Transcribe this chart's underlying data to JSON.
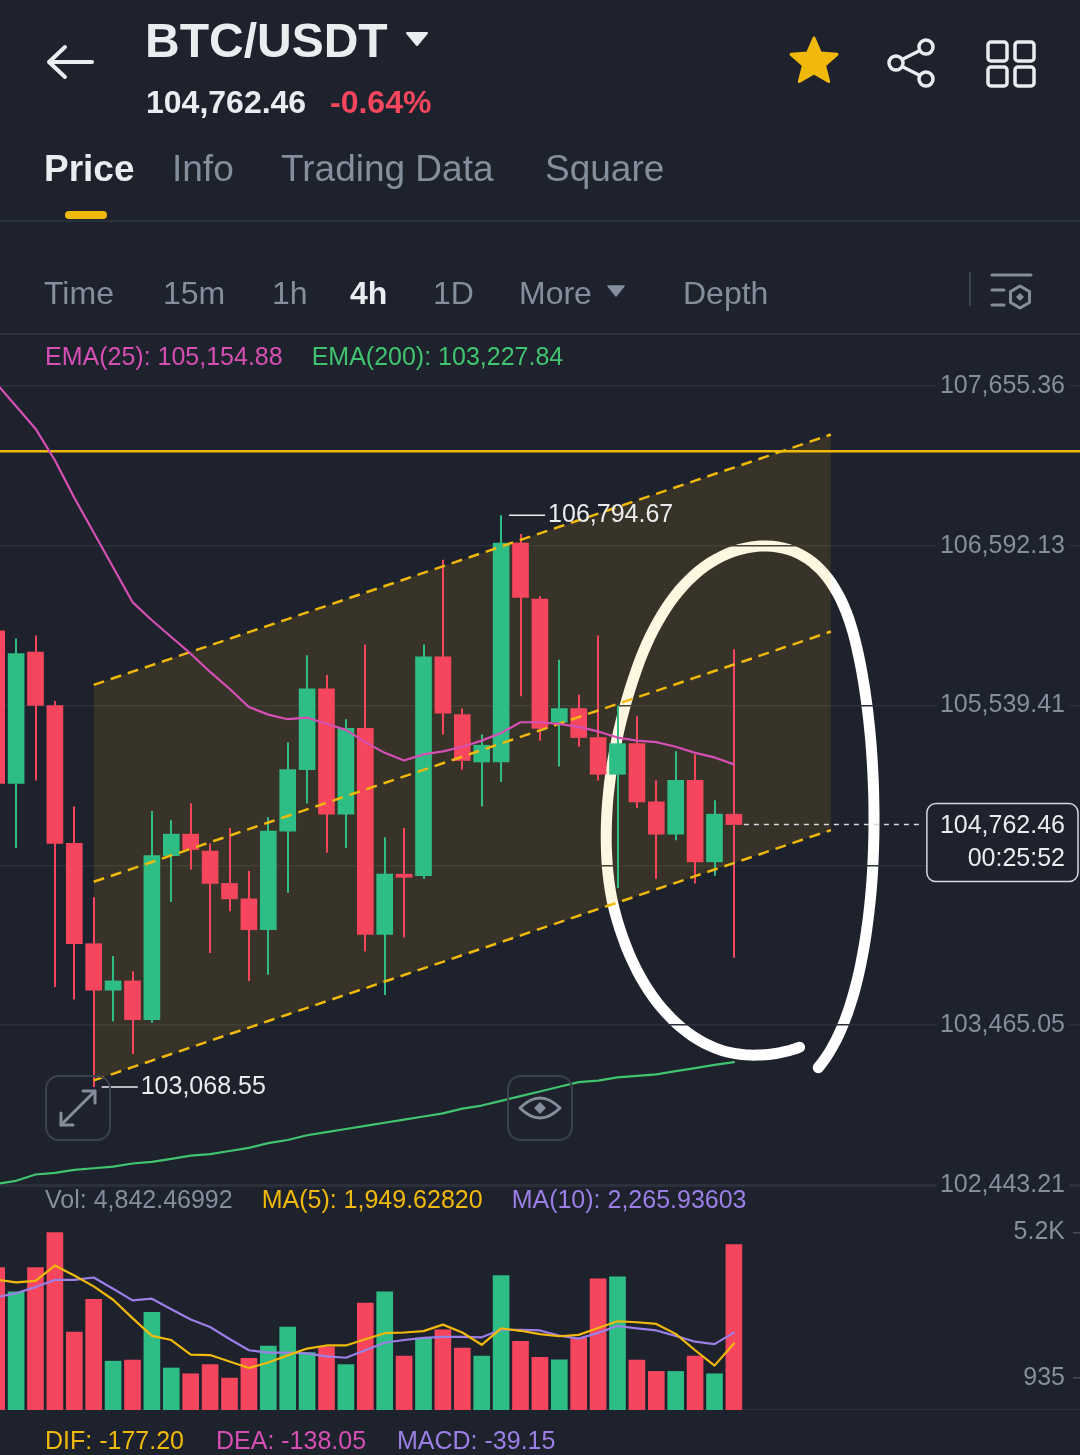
{
  "chart_data": [
    {
      "type": "candlestick",
      "title": "BTC/USDT",
      "subtitle": "104,762.46",
      "annotations": [
        "-0.64%",
        "Price",
        "Info",
        "Trading Data",
        "Square",
        "Time",
        "15m",
        "1h",
        "4h",
        "1D",
        "More",
        "Depth",
        "106,794.67",
        "103,068.55"
      ],
      "categories": [
        null,
        null,
        null,
        null,
        null,
        null,
        null,
        null,
        null,
        null,
        null,
        null,
        null,
        null,
        null,
        null,
        null,
        null,
        null,
        null,
        null,
        null,
        null,
        null,
        null,
        null,
        null,
        null,
        null,
        null,
        null,
        null,
        null,
        null,
        null,
        null,
        null,
        null,
        null,
        null,
        null,
        null,
        null,
        null,
        null,
        null,
        null,
        null,
        null,
        null,
        null,
        null,
        null,
        null,
        null,
        null
      ],
      "ohlc": [
        [
          106030,
          106030,
          105030,
          105030
        ],
        [
          105030,
          105980,
          104610,
          105880
        ],
        [
          105890,
          106000,
          105050,
          105540
        ],
        [
          105540,
          105570,
          103710,
          104640
        ],
        [
          104640,
          104880,
          103630,
          103990
        ],
        [
          103990,
          104290,
          103068.55,
          103690
        ],
        [
          103690,
          103910,
          103490,
          103750
        ],
        [
          103750,
          103810,
          103280,
          103500
        ],
        [
          103500,
          104850,
          103480,
          104560
        ],
        [
          104560,
          104790,
          104260,
          104700
        ],
        [
          104700,
          104900,
          104470,
          104600
        ],
        [
          104590,
          104640,
          103930,
          104380
        ],
        [
          104380,
          104740,
          104200,
          104280
        ],
        [
          104280,
          104460,
          103750,
          104080
        ],
        [
          104080,
          104810,
          103790,
          104720
        ],
        [
          104720,
          105300,
          104320,
          105120
        ],
        [
          105120,
          105870,
          104900,
          105650
        ],
        [
          105650,
          105740,
          104580,
          104830
        ],
        [
          104830,
          105450,
          104610,
          105390
        ],
        [
          105390,
          105940,
          103940,
          104050
        ],
        [
          104050,
          104680,
          103660,
          104440
        ],
        [
          104440,
          104740,
          104030,
          104420
        ],
        [
          104430,
          105940,
          104410,
          105860
        ],
        [
          105860,
          106500,
          105350,
          105490
        ],
        [
          105480,
          105520,
          105120,
          105180
        ],
        [
          105170,
          105350,
          104880,
          105280
        ],
        [
          105170,
          106794.67,
          105040,
          106610
        ],
        [
          106610,
          106670,
          105600,
          106250
        ],
        [
          106240,
          106260,
          105310,
          105390
        ],
        [
          105430,
          105840,
          105140,
          105520
        ],
        [
          105520,
          105610,
          105270,
          105330
        ],
        [
          105330,
          106000,
          105050,
          105090
        ],
        [
          105090,
          105540,
          104350,
          105290
        ],
        [
          105290,
          105470,
          104870,
          104910
        ],
        [
          104910,
          105050,
          104410,
          104700
        ],
        [
          104700,
          105240,
          104660,
          105050
        ],
        [
          105050,
          105220,
          104380,
          104520
        ],
        [
          104520,
          104920,
          104430,
          104830
        ],
        [
          104830,
          105910,
          103900,
          104762.46
        ],
        null,
        null,
        null,
        null,
        null,
        null,
        null,
        null,
        null,
        null,
        null,
        null,
        null,
        null,
        null,
        null,
        null
      ],
      "colors": [
        "#f6465d",
        "#2ebd85",
        "#f6465d",
        "#f6465d",
        "#f6465d",
        "#f6465d",
        "#2ebd85",
        "#f6465d",
        "#2ebd85",
        "#2ebd85",
        "#f6465d",
        "#f6465d",
        "#f6465d",
        "#f6465d",
        "#2ebd85",
        "#2ebd85",
        "#2ebd85",
        "#f6465d",
        "#2ebd85",
        "#f6465d",
        "#2ebd85",
        "#f6465d",
        "#2ebd85",
        "#f6465d",
        "#f6465d",
        "#2ebd85",
        "#2ebd85",
        "#f6465d",
        "#f6465d",
        "#2ebd85",
        "#f6465d",
        "#f6465d",
        "#2ebd85",
        "#f6465d",
        "#f6465d",
        "#2ebd85",
        "#f6465d",
        "#2ebd85",
        "#f6465d",
        null,
        null,
        null,
        null,
        null,
        null,
        null,
        null,
        null,
        null,
        null,
        null,
        null,
        null,
        null,
        null,
        null
      ],
      "series": [
        {
          "name": "EMA(25): 105,154.88",
          "type": "line",
          "color": "#d64fb5",
          "values": [
            107670,
            107520,
            107370,
            107160,
            106910,
            106680,
            106450,
            106220,
            106100,
            105990,
            105880,
            105760,
            105650,
            105530,
            105480,
            105450,
            105460,
            105420,
            105380,
            105300,
            105230,
            105180,
            105220,
            105240,
            105270,
            105310,
            105360,
            105430,
            105430,
            105420,
            105400,
            105370,
            105330,
            105310,
            105300,
            105270,
            105230,
            105200,
            105154.88,
            null,
            null,
            null,
            null,
            null,
            null,
            null,
            null,
            null,
            null,
            null,
            null,
            null,
            null,
            null,
            null,
            null
          ]
        },
        {
          "name": "EMA(200): 103,227.84",
          "type": "line",
          "color": "#41c46f",
          "values": [
            102450,
            102470,
            102510,
            102520,
            102540,
            102550,
            102560,
            102580,
            102590,
            102610,
            102630,
            102640,
            102660,
            102680,
            102710,
            102730,
            102760,
            102780,
            102800,
            102820,
            102840,
            102860,
            102880,
            102900,
            102930,
            102950,
            102980,
            103010,
            103040,
            103070,
            103100,
            103110,
            103130,
            103140,
            103150,
            103170,
            103190,
            103210,
            103227.84,
            null,
            null,
            null,
            null,
            null,
            null,
            null,
            null,
            null,
            null,
            null,
            null,
            null,
            null,
            null,
            null,
            null
          ]
        },
        {
          "type": "line",
          "color": "#f0b90b",
          "line_style": "dashed",
          "values": [
            null,
            null,
            null,
            null,
            null,
            105675,
            105719,
            105762,
            105805,
            105848,
            105892,
            105935,
            105978,
            106022,
            106065,
            106108,
            106152,
            106195,
            106239,
            106282,
            106326,
            106369,
            106413,
            106456,
            106500,
            106543,
            106587,
            106631,
            106674,
            106718,
            106761,
            106805,
            106849,
            106893,
            106936,
            106980,
            107024,
            107068,
            107111,
            107155,
            107199,
            107243,
            107287,
            107331,
            null,
            null,
            null,
            null,
            null,
            null,
            null,
            null,
            null,
            null,
            null,
            null
          ]
        },
        {
          "type": "line",
          "color": "#f0b90b",
          "line_style": "dashed",
          "values": [
            null,
            null,
            null,
            null,
            null,
            104391,
            104433,
            104476,
            104519,
            104562,
            104604,
            104647,
            104690,
            104733,
            104776,
            104818,
            104861,
            104904,
            104947,
            104990,
            105033,
            105076,
            105119,
            105162,
            105205,
            105248,
            105291,
            105334,
            105377,
            105420,
            105464,
            105507,
            105550,
            105593,
            105636,
            105679,
            105723,
            105766,
            105809,
            105852,
            105896,
            105939,
            105982,
            106026,
            null,
            null,
            null,
            null,
            null,
            null,
            null,
            null,
            null,
            null,
            null,
            null
          ],
          "lower": [
            null,
            null,
            null,
            null,
            null,
            103111,
            103153,
            103196,
            103238,
            103280,
            103322,
            103365,
            103407,
            103449,
            103492,
            103534,
            103576,
            103619,
            103661,
            103703,
            103746,
            103788,
            103831,
            103873,
            103916,
            103958,
            104001,
            104043,
            104086,
            104128,
            104171,
            104214,
            104256,
            104299,
            104342,
            104384,
            104427,
            104470,
            104512,
            104555,
            104598,
            104641,
            104684,
            104726,
            null,
            null,
            null,
            null,
            null,
            null,
            null,
            null,
            null,
            null,
            null,
            null
          ],
          "upper": [
            null,
            null,
            null,
            null,
            null,
            105675,
            105719,
            105762,
            105805,
            105848,
            105892,
            105935,
            105978,
            106022,
            106065,
            106108,
            106152,
            106195,
            106239,
            106282,
            106326,
            106369,
            106413,
            106456,
            106500,
            106543,
            106587,
            106631,
            106674,
            106718,
            106761,
            106805,
            106849,
            106893,
            106936,
            106980,
            107024,
            107068,
            107111,
            107155,
            107199,
            107243,
            107287,
            107331,
            null,
            null,
            null,
            null,
            null,
            null,
            null,
            null,
            null,
            null,
            null,
            null
          ]
        },
        {
          "type": "line",
          "color": "#f0b90b",
          "line_style": "dashed",
          "values": [
            null,
            null,
            null,
            null,
            null,
            103111,
            103153,
            103196,
            103238,
            103280,
            103322,
            103365,
            103407,
            103449,
            103492,
            103534,
            103576,
            103619,
            103661,
            103703,
            103746,
            103788,
            103831,
            103873,
            103916,
            103958,
            104001,
            104043,
            104086,
            104128,
            104171,
            104214,
            104256,
            104299,
            104342,
            104384,
            104427,
            104470,
            104512,
            104555,
            104598,
            104641,
            104684,
            104726,
            null,
            null,
            null,
            null,
            null,
            null,
            null,
            null,
            null,
            null,
            null,
            null
          ]
        }
      ],
      "ylim": [
        102443.21,
        108010
      ],
      "yticks": [
        {
          "value": 102443.21,
          "label": "102,443.21"
        },
        {
          "value": 103465.05,
          "label": "103,465.05"
        },
        {
          "value": 104497.1,
          "label": null
        },
        {
          "value": 105539.41,
          "label": "105,539.41"
        },
        {
          "value": 106592.13,
          "label": "106,592.13"
        },
        {
          "value": 107655.36,
          "label": "107,655.36"
        }
      ],
      "log": true,
      "grid": "y",
      "legend": "top left",
      "tick_labels": "y",
      "marker": "none",
      "line_style": "solid",
      "ref_lines": [
        {
          "axis": "y",
          "value": 107220,
          "color": "#f0b90b",
          "line_style": "solid"
        },
        {
          "axis": "y",
          "value": 104762.46,
          "label": "104,762.46 00:25:52",
          "color": "#d5d8dc",
          "line_style": "dashed"
        }
      ]
    },
    {
      "type": "bar",
      "title": "Vol: 4,842.46992",
      "annotations": [
        "DIF: -177.20",
        "DEA: -138.05",
        "MACD: -39.15"
      ],
      "categories": [
        null,
        null,
        null,
        null,
        null,
        null,
        null,
        null,
        null,
        null,
        null,
        null,
        null,
        null,
        null,
        null,
        null,
        null,
        null,
        null,
        null,
        null,
        null,
        null,
        null,
        null,
        null,
        null,
        null,
        null,
        null,
        null,
        null,
        null,
        null,
        null,
        null,
        null,
        null,
        null,
        null,
        null,
        null,
        null,
        null,
        null,
        null,
        null,
        null,
        null,
        null,
        null,
        null,
        null,
        null,
        null
      ],
      "series": [
        {
          "values": [
            4170,
            3460,
            4170,
            5200,
            2280,
            3240,
            1430,
            1460,
            2860,
            1230,
            1060,
            1330,
            935,
            1510,
            1870,
            2430,
            1680,
            1850,
            1330,
            3130,
            3460,
            1580,
            2110,
            2350,
            1810,
            1580,
            3940,
            2010,
            1540,
            1470,
            2110,
            3840,
            3900,
            1460,
            1130,
            1130,
            1580,
            1060,
            4842.46992,
            null,
            null,
            null,
            null,
            null,
            null,
            null,
            null,
            null,
            null,
            null,
            null,
            null,
            null,
            null,
            null,
            null
          ],
          "colors": [
            "#f6465d",
            "#2ebd85",
            "#f6465d",
            "#f6465d",
            "#f6465d",
            "#f6465d",
            "#2ebd85",
            "#f6465d",
            "#2ebd85",
            "#2ebd85",
            "#f6465d",
            "#f6465d",
            "#f6465d",
            "#f6465d",
            "#2ebd85",
            "#2ebd85",
            "#2ebd85",
            "#f6465d",
            "#2ebd85",
            "#f6465d",
            "#2ebd85",
            "#f6465d",
            "#2ebd85",
            "#f6465d",
            "#f6465d",
            "#2ebd85",
            "#2ebd85",
            "#f6465d",
            "#f6465d",
            "#2ebd85",
            "#f6465d",
            "#f6465d",
            "#2ebd85",
            "#f6465d",
            "#f6465d",
            "#2ebd85",
            "#f6465d",
            "#2ebd85",
            "#f6465d",
            null,
            null,
            null,
            null,
            null,
            null,
            null,
            null,
            null,
            null,
            null,
            null,
            null,
            null,
            null,
            null,
            null
          ]
        },
        {
          "name": "MA(5): 1,949.62820",
          "type": "line",
          "color": "#f0b90b",
          "values": [
            3820,
            3740,
            3780,
            4230,
            3940,
            3620,
            3230,
            2690,
            2170,
            2050,
            1620,
            1610,
            1420,
            1230,
            1390,
            1600,
            1800,
            1890,
            1890,
            2070,
            2250,
            2270,
            2310,
            2500,
            2270,
            1910,
            2390,
            2320,
            2220,
            2160,
            2200,
            2400,
            2600,
            2570,
            2520,
            2230,
            1750,
            1300,
            1949.6282,
            null,
            null,
            null,
            null,
            null,
            null,
            null,
            null,
            null,
            null,
            null,
            null,
            null,
            null,
            null,
            null,
            null
          ]
        },
        {
          "name": "MA(10): 2,265.93603",
          "type": "line",
          "color": "#9b7fe6",
          "values": [
            3300,
            3420,
            3600,
            3810,
            3810,
            3880,
            3550,
            3210,
            3260,
            2950,
            2650,
            2430,
            2080,
            1750,
            1680,
            1680,
            1660,
            1570,
            1530,
            1750,
            1970,
            2050,
            2110,
            2140,
            2140,
            2130,
            2350,
            2350,
            2330,
            2180,
            2090,
            2260,
            2460,
            2390,
            2330,
            2170,
            2000,
            1930,
            2265.93603,
            null,
            null,
            null,
            null,
            null,
            null,
            null,
            null,
            null,
            null,
            null,
            null,
            null,
            null,
            null,
            null,
            null
          ]
        }
      ],
      "ylim": [
        0,
        6590
      ],
      "yticks": [
        {
          "value": 5200,
          "label": "5.2K"
        },
        935
      ],
      "legend": "top left",
      "tick_labels": "y",
      "marker": "none"
    }
  ]
}
